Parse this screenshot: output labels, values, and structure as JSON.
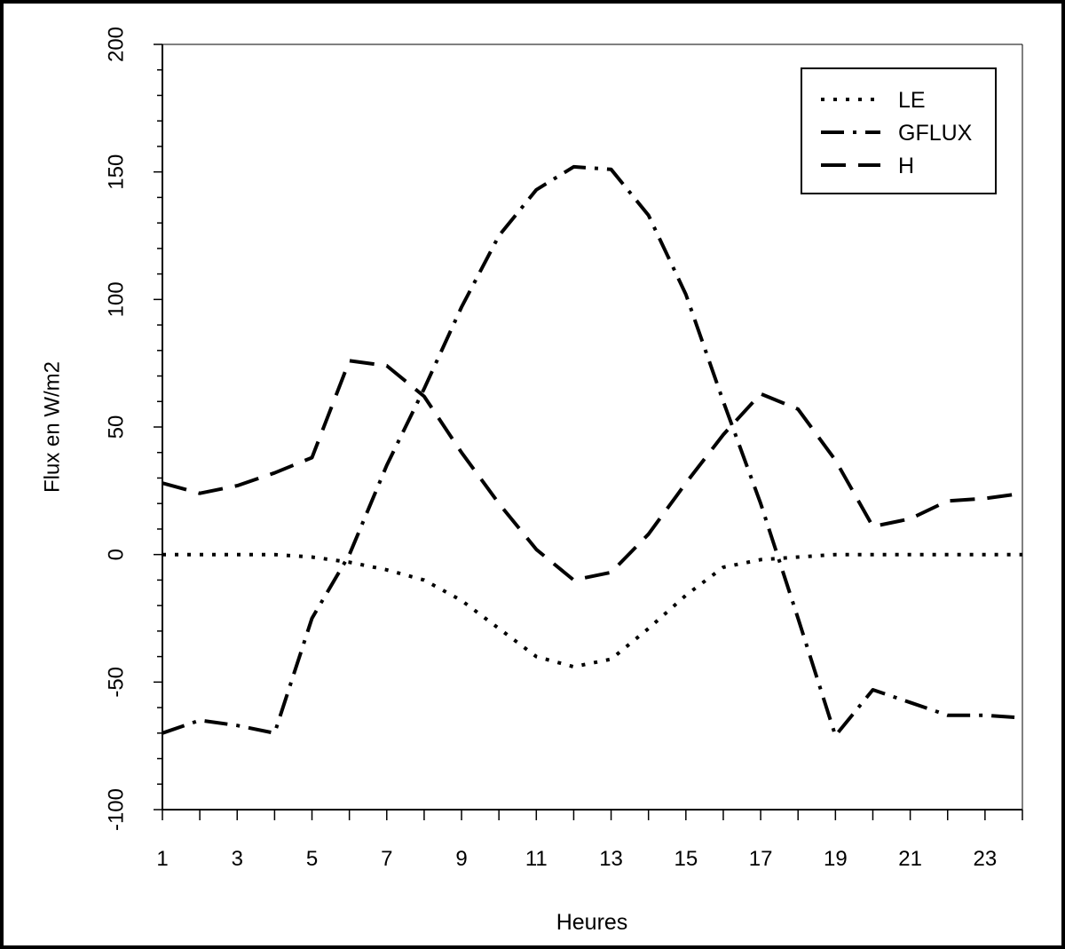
{
  "chart_data": {
    "type": "line",
    "title": "",
    "xlabel": "Heures",
    "ylabel": "Flux en W/m2",
    "xlim": [
      1,
      24
    ],
    "ylim": [
      -100,
      200
    ],
    "x_tick_labels": [
      "1",
      "3",
      "5",
      "7",
      "9",
      "11",
      "13",
      "15",
      "17",
      "19",
      "21",
      "23"
    ],
    "y_tick_labels": [
      "-100",
      "-50",
      "0",
      "50",
      "100",
      "150",
      "200"
    ],
    "x_ticks": [
      1,
      3,
      5,
      7,
      9,
      11,
      13,
      15,
      17,
      19,
      21,
      23
    ],
    "y_ticks": [
      -100,
      -50,
      0,
      50,
      100,
      150,
      200
    ],
    "grid": false,
    "legend_position": "top-right",
    "x": [
      1,
      2,
      3,
      4,
      5,
      6,
      7,
      8,
      9,
      10,
      11,
      12,
      13,
      14,
      15,
      16,
      17,
      18,
      19,
      20,
      21,
      22,
      23,
      24
    ],
    "series": [
      {
        "name": "LE",
        "dash": "dotted",
        "color": "#000000",
        "values": [
          0,
          0,
          0,
          0,
          -1,
          -3,
          -6,
          -10,
          -18,
          -29,
          -40,
          -44,
          -41,
          -29,
          -16,
          -5,
          -2,
          -1,
          0,
          0,
          0,
          0,
          0,
          0
        ]
      },
      {
        "name": "GFLUX",
        "dash": "dash-dot",
        "color": "#000000",
        "values": [
          -70,
          -65,
          -67,
          -70,
          -25,
          0,
          35,
          65,
          97,
          125,
          143,
          152,
          151,
          133,
          102,
          60,
          20,
          -25,
          -71,
          -53,
          -58,
          -63,
          -63,
          -64
        ]
      },
      {
        "name": "H",
        "dash": "dashed",
        "color": "#000000",
        "values": [
          28,
          24,
          27,
          32,
          38,
          76,
          74,
          62,
          40,
          20,
          2,
          -10,
          -7,
          8,
          28,
          47,
          63,
          57,
          37,
          11,
          14,
          21,
          22,
          24
        ]
      }
    ]
  }
}
